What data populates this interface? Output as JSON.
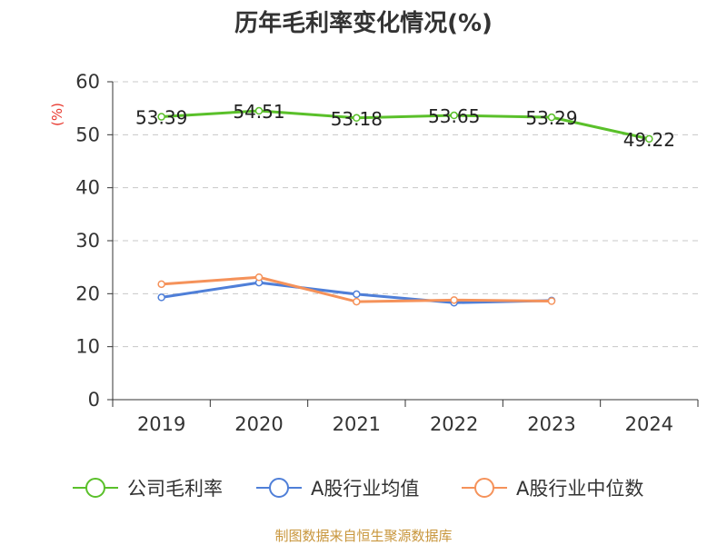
{
  "chart_data": {
    "type": "line",
    "title": "历年毛利率变化情况(%)",
    "unit_label": "(%)",
    "categories": [
      "2019",
      "2020",
      "2021",
      "2022",
      "2023",
      "2024"
    ],
    "ylim": [
      0,
      60
    ],
    "yticks": [
      "0",
      "10",
      "20",
      "30",
      "40",
      "50",
      "60"
    ],
    "grid": true,
    "legend_position": "bottom",
    "series": [
      {
        "name": "公司毛利率",
        "color": "#5ac02a",
        "values": [
          53.39,
          54.51,
          53.18,
          53.65,
          53.29,
          49.22
        ],
        "labels": [
          "53.39",
          "54.51",
          "53.18",
          "53.65",
          "53.29",
          "49.22"
        ]
      },
      {
        "name": "A股行业均值",
        "color": "#4f7fd8",
        "values": [
          19.3,
          22.1,
          19.9,
          18.3,
          18.7,
          null
        ]
      },
      {
        "name": "A股行业中位数",
        "color": "#f5925a",
        "values": [
          21.8,
          23.1,
          18.5,
          18.8,
          18.6,
          null
        ]
      }
    ]
  },
  "source": "制图数据来自恒生聚源数据库"
}
